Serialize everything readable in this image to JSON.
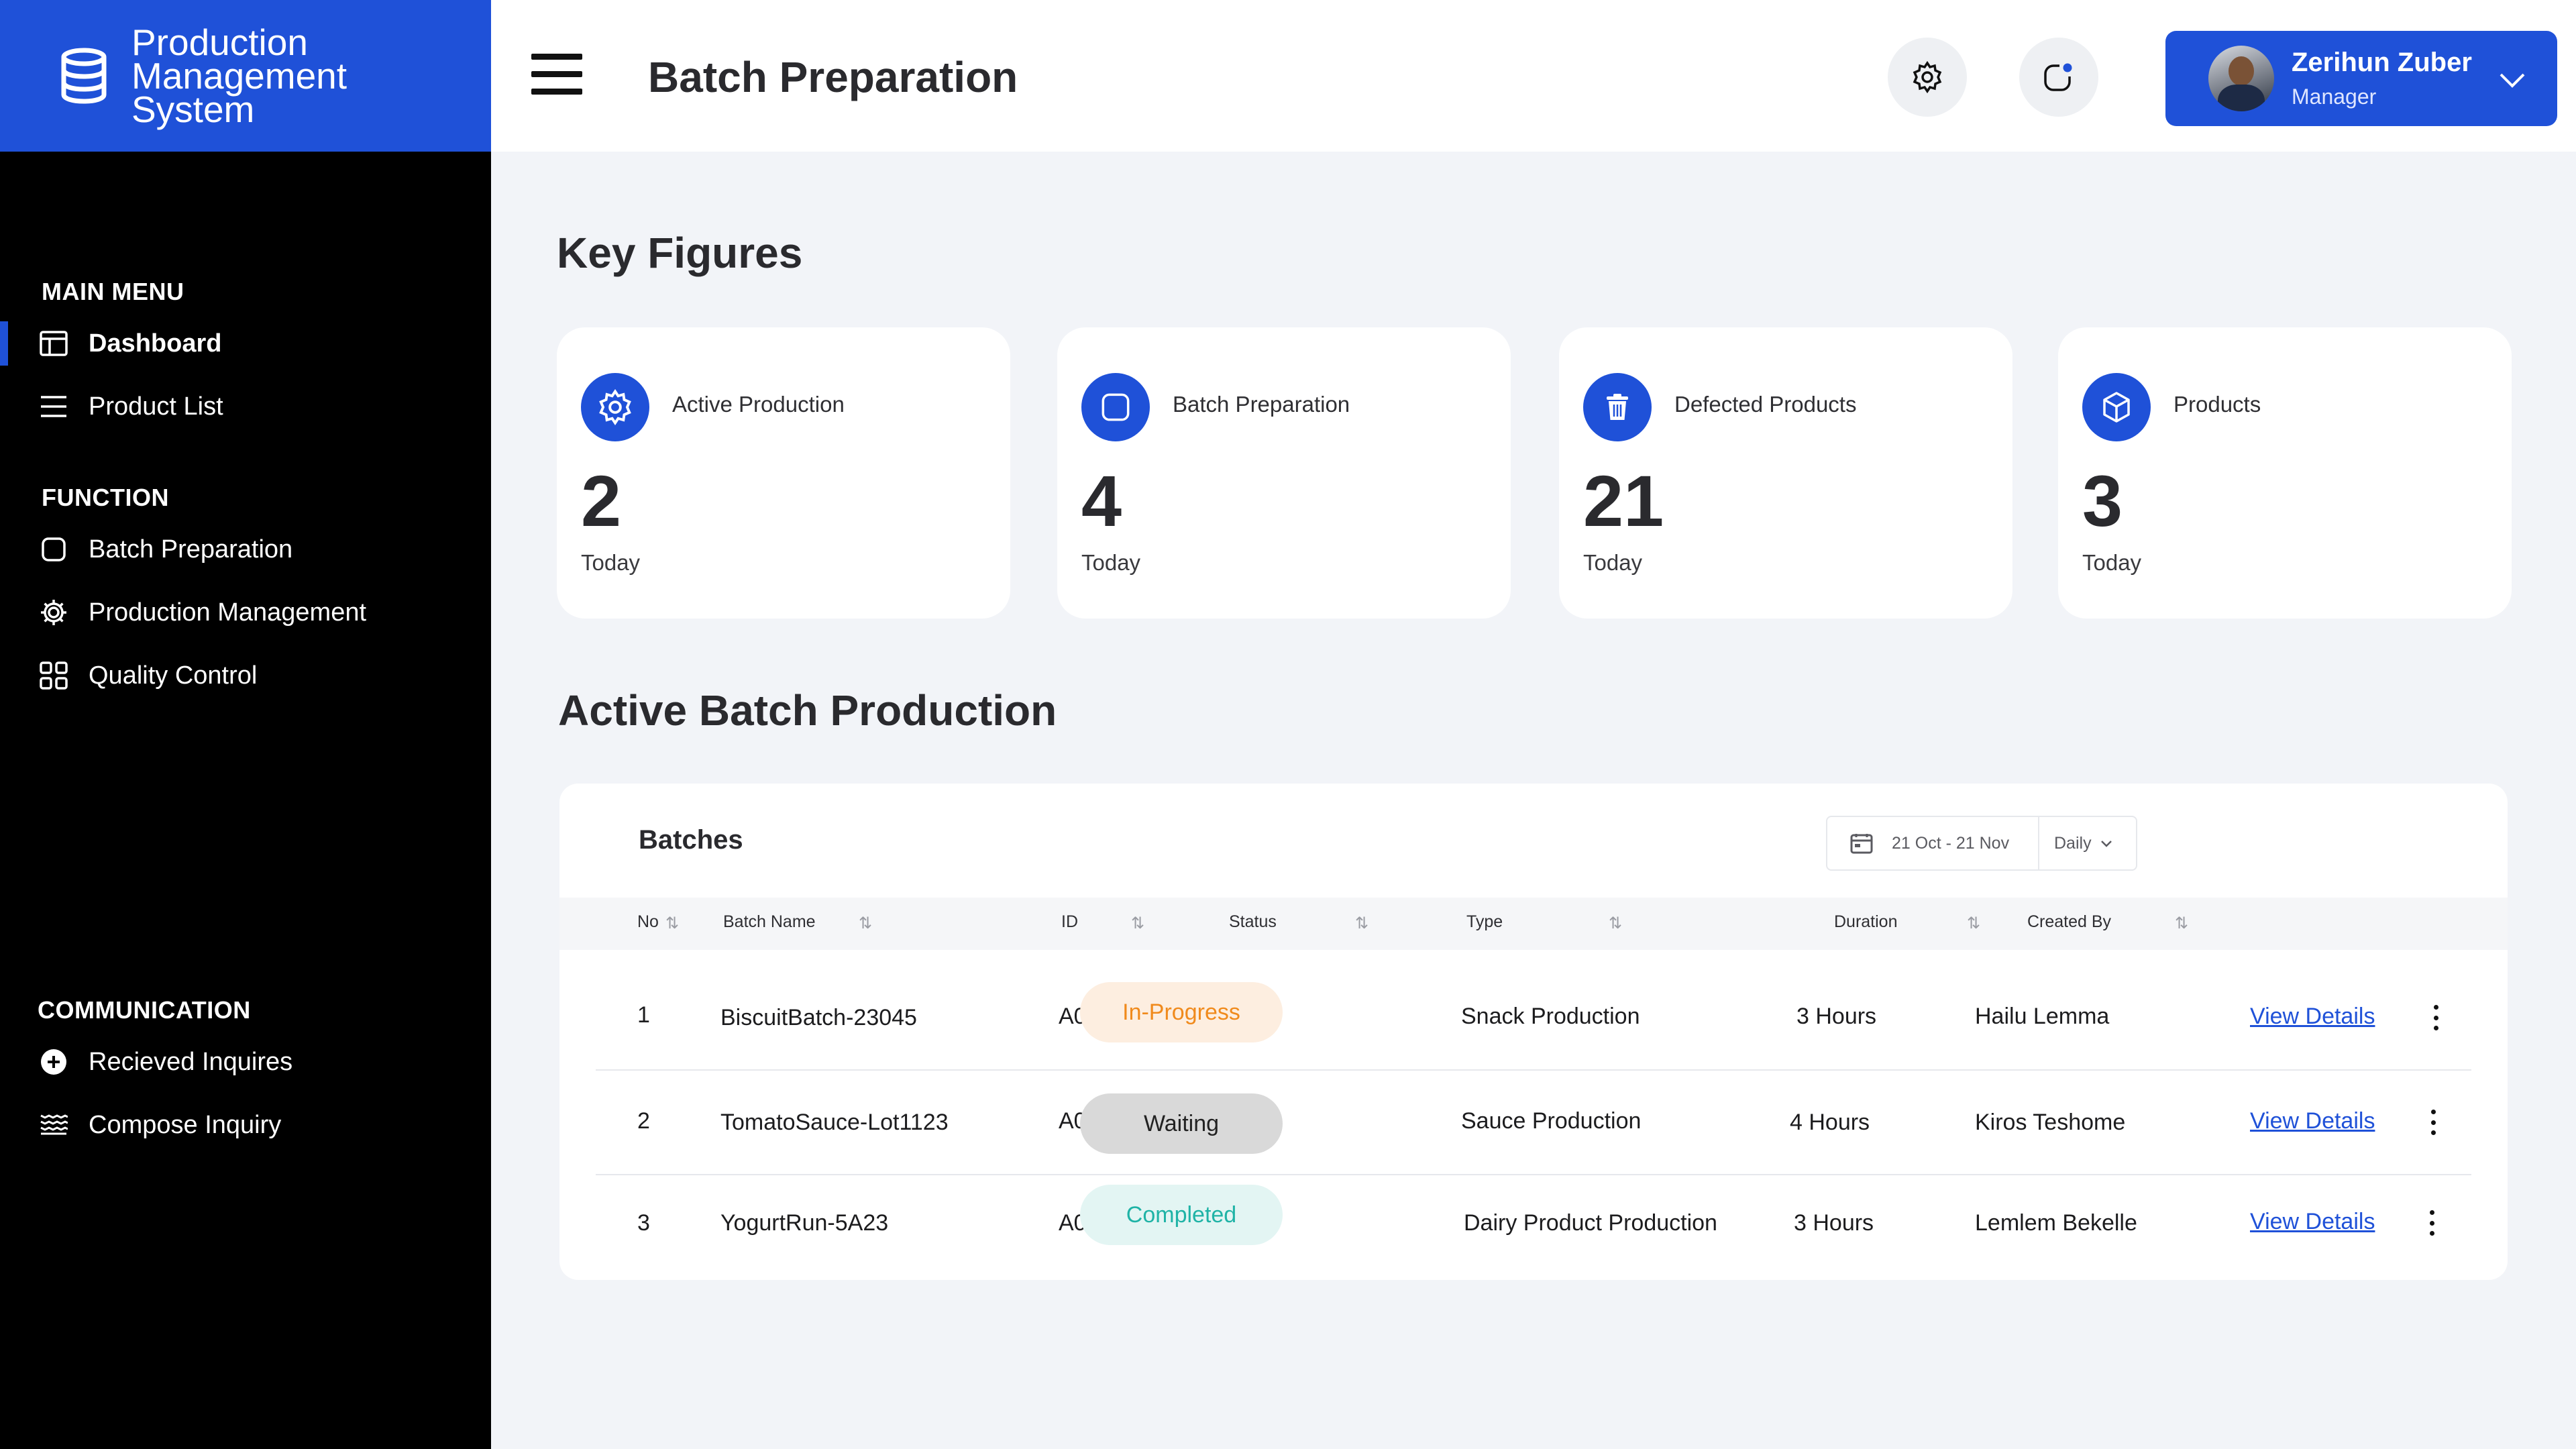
{
  "app": {
    "name": "Production Management System"
  },
  "sidebar": {
    "sections": [
      {
        "title": "MAIN MENU",
        "items": [
          {
            "label": "Dashboard",
            "icon": "dashboard-icon",
            "active": true
          },
          {
            "label": "Product List",
            "icon": "list-icon"
          }
        ]
      },
      {
        "title": "FUNCTION",
        "items": [
          {
            "label": "Batch Preparation",
            "icon": "square-icon"
          },
          {
            "label": "Production Management",
            "icon": "gear-icon"
          },
          {
            "label": "Quality Control",
            "icon": "grid-icon"
          }
        ]
      },
      {
        "title": "COMMUNICATION",
        "items": [
          {
            "label": "Recieved Inquires",
            "icon": "plus-circle-icon"
          },
          {
            "label": "Compose Inquiry",
            "icon": "layers-icon"
          }
        ]
      }
    ]
  },
  "header": {
    "title": "Batch Preparation",
    "user": {
      "name": "Zerihun Zuber",
      "role": "Manager"
    }
  },
  "key_figures": {
    "title": "Key Figures",
    "cards": [
      {
        "label": "Active Production",
        "value": "2",
        "sub": "Today",
        "icon": "gear-icon"
      },
      {
        "label": "Batch Preparation",
        "value": "4",
        "sub": "Today",
        "icon": "square-icon"
      },
      {
        "label": "Defected Products",
        "value": "21",
        "sub": "Today",
        "icon": "trash-icon"
      },
      {
        "label": "Products",
        "value": "3",
        "sub": "Today",
        "icon": "box-icon"
      }
    ]
  },
  "batches_section": {
    "title": "Active Batch Production",
    "table_title": "Batches",
    "date_range": "21 Oct - 21 Nov",
    "period": "Daily",
    "columns": [
      "No",
      "Batch Name",
      "ID",
      "Status",
      "Type",
      "Duration",
      "Created By"
    ],
    "rows": [
      {
        "no": "1",
        "name": "BiscuitBatch-23045",
        "id": "A001",
        "status": "In-Progress",
        "type": "Snack Production",
        "duration": "3 Hours",
        "created_by": "Hailu Lemma",
        "action": "View Details"
      },
      {
        "no": "2",
        "name": "TomatoSauce-Lot1123",
        "id": "A002",
        "status": "Waiting",
        "type": "Sauce Production",
        "duration": "4 Hours",
        "created_by": "Kiros Teshome",
        "action": "View Details"
      },
      {
        "no": "3",
        "name": "YogurtRun-5A23",
        "id": "A003",
        "status": "Completed",
        "type": "Dairy Product Production",
        "duration": "3 Hours",
        "created_by": "Lemlem Bekelle",
        "action": "View Details"
      }
    ]
  },
  "colors": {
    "accent": "#1f51d8",
    "sidebar_bg": "#000000",
    "in_progress_bg": "#fdeee0",
    "in_progress_text": "#f08a1c",
    "waiting_bg": "#d9d9d9",
    "waiting_text": "#222222",
    "completed_bg": "#e3f5f3",
    "completed_text": "#1fb3a6"
  }
}
